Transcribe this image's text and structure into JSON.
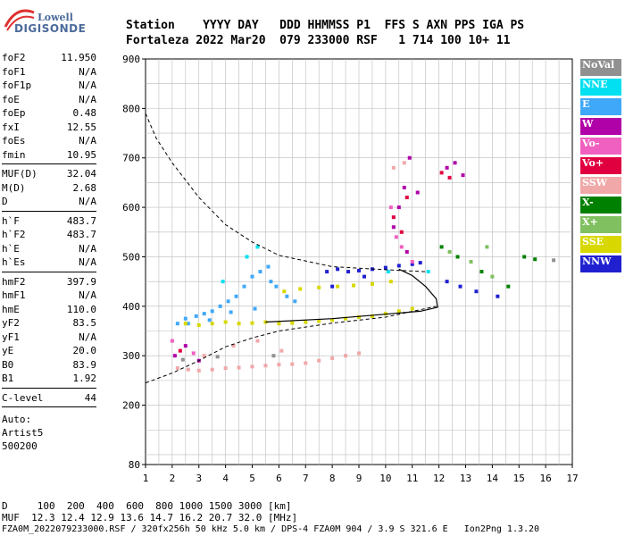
{
  "logo": {
    "line1": "Lowell",
    "line2": "DIGISONDE"
  },
  "header": {
    "row1": "Station    YYYY DAY   DDD HHMMSS P1  FFS S AXN PPS IGA PS",
    "row2": "Fortaleza 2022 Mar20  079 233000 RSF   1 714 100 10+ 11"
  },
  "params": {
    "group1": [
      {
        "k": "foF2",
        "v": "11.950"
      },
      {
        "k": "foF1",
        "v": "N/A"
      },
      {
        "k": "foF1p",
        "v": "N/A"
      },
      {
        "k": "foE",
        "v": "N/A"
      },
      {
        "k": "foEp",
        "v": "0.48"
      },
      {
        "k": "fxI",
        "v": "12.55"
      },
      {
        "k": "foEs",
        "v": "N/A"
      },
      {
        "k": "fmin",
        "v": "10.95"
      }
    ],
    "group2": [
      {
        "k": "MUF(D)",
        "v": "32.04"
      },
      {
        "k": "M(D)",
        "v": "2.68"
      },
      {
        "k": "D",
        "v": "N/A"
      }
    ],
    "group3": [
      {
        "k": "h`F",
        "v": "483.7"
      },
      {
        "k": "h`F2",
        "v": "483.7"
      },
      {
        "k": "h`E",
        "v": "N/A"
      },
      {
        "k": "h`Es",
        "v": "N/A"
      }
    ],
    "group4": [
      {
        "k": "hmF2",
        "v": "397.9"
      },
      {
        "k": "hmF1",
        "v": "N/A"
      },
      {
        "k": "hmE",
        "v": "110.0"
      },
      {
        "k": "yF2",
        "v": "83.5"
      },
      {
        "k": "yF1",
        "v": "N/A"
      },
      {
        "k": "yE",
        "v": "20.0"
      },
      {
        "k": "B0",
        "v": "83.9"
      },
      {
        "k": "B1",
        "v": "1.92"
      }
    ],
    "group5": [
      {
        "k": "C-level",
        "v": "44"
      }
    ],
    "auto": [
      "Auto:",
      "Artist5",
      "500200"
    ]
  },
  "legend": [
    {
      "label": "NoVal",
      "color": "#909090"
    },
    {
      "label": "NNE",
      "color": "#00e0f0"
    },
    {
      "label": "E",
      "color": "#40a8f8"
    },
    {
      "label": "W",
      "color": "#b000a8"
    },
    {
      "label": "Vo-",
      "color": "#f060c0"
    },
    {
      "label": "Vo+",
      "color": "#e00040"
    },
    {
      "label": "SSW",
      "color": "#f0a8a8"
    },
    {
      "label": "X-",
      "color": "#008000"
    },
    {
      "label": "X+",
      "color": "#80c060"
    },
    {
      "label": "SSE",
      "color": "#d8d800"
    },
    {
      "label": "NNW",
      "color": "#2020d0"
    }
  ],
  "footer": {
    "line1": "D     100  200  400  600  800 1000 1500 3000 [km]",
    "line2": "MUF  12.3 12.4 12.9 13.6 14.7 16.2 20.7 32.0 [MHz]",
    "line3": "FZA0M_2022079233000.RSF / 320fx256h 50 kHz 5.0 km / DPS-4 FZA0M 904 / 3.9 S 321.6 E   Ion2Png 1.3.20"
  },
  "chart_data": {
    "type": "scatter",
    "xlim": [
      1,
      17
    ],
    "ylim": [
      80,
      900
    ],
    "x_ticks": [
      "1",
      "2",
      "3",
      "4",
      "5",
      "6",
      "7",
      "8",
      "9",
      "10",
      "11",
      "12",
      "13",
      "14",
      "15",
      "16",
      "17"
    ],
    "y_ticks": [
      "80",
      "200",
      "300",
      "400",
      "500",
      "600",
      "700",
      "800",
      "900"
    ],
    "grid": true,
    "series": [
      {
        "name": "E",
        "color": "#40a8f8",
        "points": [
          [
            2.2,
            365
          ],
          [
            2.5,
            375
          ],
          [
            2.9,
            380
          ],
          [
            3.2,
            385
          ],
          [
            3.5,
            390
          ],
          [
            3.8,
            400
          ],
          [
            4.1,
            410
          ],
          [
            4.4,
            420
          ],
          [
            4.7,
            440
          ],
          [
            5.0,
            460
          ],
          [
            5.3,
            470
          ],
          [
            5.6,
            480
          ],
          [
            5.9,
            440
          ],
          [
            6.3,
            420
          ],
          [
            6.6,
            410
          ],
          [
            2.6,
            365
          ],
          [
            3.4,
            372
          ],
          [
            4.2,
            388
          ],
          [
            5.1,
            395
          ],
          [
            5.7,
            450
          ]
        ]
      },
      {
        "name": "SSE",
        "color": "#d8d800",
        "points": [
          [
            2.5,
            365
          ],
          [
            3.0,
            362
          ],
          [
            3.5,
            365
          ],
          [
            4.0,
            368
          ],
          [
            4.5,
            365
          ],
          [
            5.0,
            366
          ],
          [
            5.5,
            368
          ],
          [
            6.0,
            365
          ],
          [
            6.5,
            366
          ],
          [
            7.0,
            368
          ],
          [
            7.5,
            370
          ],
          [
            8.0,
            372
          ],
          [
            8.5,
            375
          ],
          [
            9.0,
            378
          ],
          [
            9.5,
            380
          ],
          [
            10.0,
            385
          ],
          [
            10.5,
            390
          ],
          [
            11.0,
            395
          ],
          [
            6.2,
            430
          ],
          [
            6.8,
            435
          ],
          [
            7.5,
            438
          ],
          [
            8.2,
            440
          ],
          [
            8.8,
            442
          ],
          [
            9.5,
            445
          ],
          [
            10.2,
            450
          ]
        ]
      },
      {
        "name": "SSW",
        "color": "#f0a8a8",
        "points": [
          [
            2.2,
            275
          ],
          [
            2.6,
            272
          ],
          [
            3.0,
            270
          ],
          [
            3.5,
            272
          ],
          [
            4.0,
            275
          ],
          [
            4.5,
            276
          ],
          [
            5.0,
            278
          ],
          [
            5.5,
            280
          ],
          [
            6.0,
            282
          ],
          [
            6.5,
            283
          ],
          [
            7.0,
            285
          ],
          [
            7.5,
            290
          ],
          [
            8.0,
            295
          ],
          [
            8.5,
            300
          ],
          [
            9.0,
            305
          ],
          [
            3.2,
            300
          ],
          [
            4.3,
            320
          ],
          [
            5.2,
            330
          ],
          [
            6.1,
            310
          ],
          [
            10.3,
            680
          ],
          [
            10.7,
            690
          ]
        ]
      },
      {
        "name": "NNW",
        "color": "#2020d0",
        "points": [
          [
            7.8,
            470
          ],
          [
            8.2,
            475
          ],
          [
            8.6,
            470
          ],
          [
            9.0,
            472
          ],
          [
            9.5,
            475
          ],
          [
            10.0,
            478
          ],
          [
            10.5,
            482
          ],
          [
            11.0,
            485
          ],
          [
            11.3,
            488
          ],
          [
            12.3,
            450
          ],
          [
            12.8,
            440
          ],
          [
            13.4,
            430
          ],
          [
            14.2,
            420
          ],
          [
            8.0,
            440
          ],
          [
            9.2,
            460
          ]
        ]
      },
      {
        "name": "W",
        "color": "#b000a8",
        "points": [
          [
            2.1,
            300
          ],
          [
            2.5,
            320
          ],
          [
            3.0,
            290
          ],
          [
            10.3,
            560
          ],
          [
            10.5,
            600
          ],
          [
            10.7,
            640
          ],
          [
            10.9,
            700
          ],
          [
            11.2,
            630
          ],
          [
            12.3,
            680
          ],
          [
            12.6,
            690
          ],
          [
            12.9,
            665
          ],
          [
            10.8,
            510
          ]
        ]
      },
      {
        "name": "Vo-",
        "color": "#f060c0",
        "points": [
          [
            2.0,
            330
          ],
          [
            2.8,
            305
          ],
          [
            10.4,
            540
          ],
          [
            10.6,
            520
          ],
          [
            11.0,
            490
          ],
          [
            10.2,
            600
          ]
        ]
      },
      {
        "name": "Vo+",
        "color": "#e00040",
        "points": [
          [
            10.3,
            580
          ],
          [
            10.6,
            550
          ],
          [
            12.1,
            670
          ],
          [
            12.4,
            660
          ],
          [
            2.3,
            310
          ],
          [
            10.8,
            620
          ]
        ]
      },
      {
        "name": "NNE",
        "color": "#00e0f0",
        "points": [
          [
            4.8,
            500
          ],
          [
            5.2,
            520
          ],
          [
            3.9,
            450
          ],
          [
            10.1,
            470
          ],
          [
            11.6,
            470
          ]
        ]
      },
      {
        "name": "X-",
        "color": "#008000",
        "points": [
          [
            12.1,
            520
          ],
          [
            12.7,
            500
          ],
          [
            13.6,
            470
          ],
          [
            14.6,
            440
          ],
          [
            15.2,
            500
          ],
          [
            15.6,
            495
          ]
        ]
      },
      {
        "name": "X+",
        "color": "#80c060",
        "points": [
          [
            12.4,
            510
          ],
          [
            13.2,
            490
          ],
          [
            14.0,
            460
          ],
          [
            13.8,
            520
          ]
        ]
      },
      {
        "name": "NoVal",
        "color": "#909090",
        "points": [
          [
            2.4,
            292
          ],
          [
            3.7,
            298
          ],
          [
            5.8,
            300
          ],
          [
            16.3,
            493
          ]
        ]
      }
    ]
  }
}
